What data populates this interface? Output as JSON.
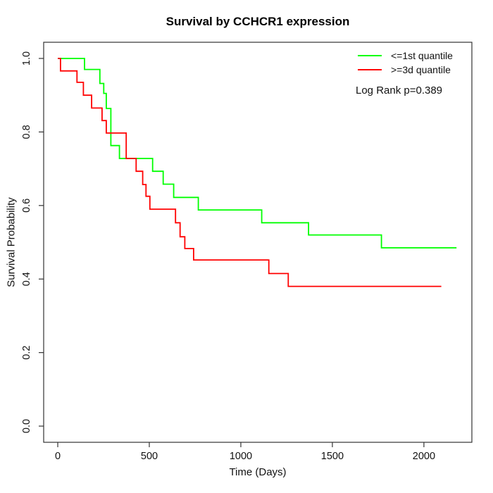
{
  "page": {
    "background": "#ffffff"
  },
  "chart_data": {
    "type": "line",
    "subtype": "kaplan-meier-step",
    "title": "Survival by CCHCR1 expression",
    "xlabel": "Time (Days)",
    "ylabel": "Survival Probability",
    "x_ticks": [
      0,
      500,
      1000,
      1500,
      2000
    ],
    "y_ticks": [
      "0.0",
      "0.2",
      "0.4",
      "0.6",
      "0.8",
      "1.0"
    ],
    "xlim": [
      -77,
      2262
    ],
    "ylim": [
      -0.044,
      1.044
    ],
    "grid": false,
    "axis_color": "#333333",
    "tick_label_color": "#111111",
    "legend_position": "top-right",
    "annotation": "Log Rank p=0.389",
    "series": [
      {
        "name": "<=1st quantile",
        "color": "#00ff00",
        "end_time": 2178,
        "steps": [
          [
            0,
            1.0
          ],
          [
            146,
            0.97
          ],
          [
            230,
            0.932
          ],
          [
            251,
            0.905
          ],
          [
            265,
            0.864
          ],
          [
            290,
            0.763
          ],
          [
            337,
            0.728
          ],
          [
            518,
            0.693
          ],
          [
            576,
            0.658
          ],
          [
            633,
            0.622
          ],
          [
            768,
            0.588
          ],
          [
            1114,
            0.553
          ],
          [
            1370,
            0.52
          ],
          [
            1768,
            0.485
          ]
        ]
      },
      {
        "name": ">=3d quantile",
        "color": "#ff0000",
        "end_time": 2095,
        "steps": [
          [
            0,
            1.0
          ],
          [
            15,
            0.966
          ],
          [
            105,
            0.935
          ],
          [
            140,
            0.9
          ],
          [
            185,
            0.865
          ],
          [
            242,
            0.831
          ],
          [
            265,
            0.797
          ],
          [
            374,
            0.728
          ],
          [
            428,
            0.693
          ],
          [
            464,
            0.657
          ],
          [
            482,
            0.625
          ],
          [
            503,
            0.59
          ],
          [
            643,
            0.553
          ],
          [
            668,
            0.515
          ],
          [
            694,
            0.483
          ],
          [
            742,
            0.452
          ],
          [
            1153,
            0.415
          ],
          [
            1259,
            0.38
          ]
        ]
      }
    ]
  }
}
